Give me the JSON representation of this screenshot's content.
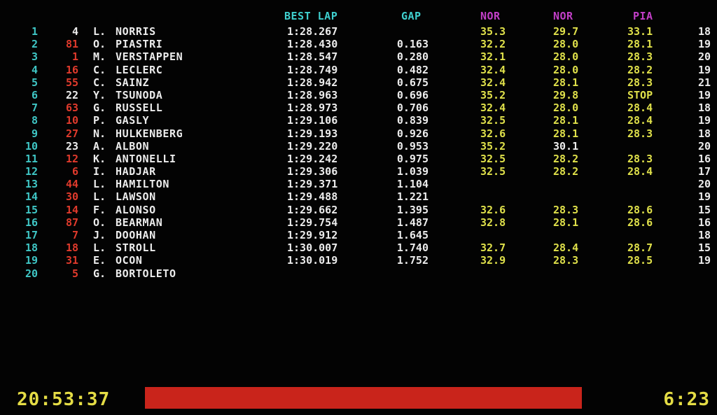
{
  "headers": {
    "best_lap": "BEST LAP",
    "gap": "GAP",
    "sector1": "NOR",
    "sector2": "NOR",
    "sector3": "PIA"
  },
  "colors": {
    "position": "#3fc6c5",
    "header": "#3fd0cf",
    "sector_header": "#c23fc8",
    "car_number_red": "#e03a2c",
    "sector_time": "#dfe04a",
    "text": "#ececec",
    "progress": "#c9241b",
    "clock": "#e4dc45"
  },
  "rows": [
    {
      "pos": "1",
      "num": "4",
      "num_red": false,
      "init": "L.",
      "name": "NORRIS",
      "best": "1:28.267",
      "gap": "",
      "s1": "35.3",
      "s2": "29.7",
      "s3": "33.1",
      "s2_white": false,
      "laps": "18"
    },
    {
      "pos": "2",
      "num": "81",
      "num_red": true,
      "init": "O.",
      "name": "PIASTRI",
      "best": "1:28.430",
      "gap": "0.163",
      "s1": "32.2",
      "s2": "28.0",
      "s3": "28.1",
      "s2_white": false,
      "laps": "19"
    },
    {
      "pos": "3",
      "num": "1",
      "num_red": true,
      "init": "M.",
      "name": "VERSTAPPEN",
      "best": "1:28.547",
      "gap": "0.280",
      "s1": "32.1",
      "s2": "28.0",
      "s3": "28.3",
      "s2_white": false,
      "laps": "20"
    },
    {
      "pos": "4",
      "num": "16",
      "num_red": true,
      "init": "C.",
      "name": "LECLERC",
      "best": "1:28.749",
      "gap": "0.482",
      "s1": "32.4",
      "s2": "28.0",
      "s3": "28.2",
      "s2_white": false,
      "laps": "19"
    },
    {
      "pos": "5",
      "num": "55",
      "num_red": true,
      "init": "C.",
      "name": "SAINZ",
      "best": "1:28.942",
      "gap": "0.675",
      "s1": "32.4",
      "s2": "28.1",
      "s3": "28.3",
      "s2_white": false,
      "laps": "21"
    },
    {
      "pos": "6",
      "num": "22",
      "num_red": false,
      "init": "Y.",
      "name": "TSUNODA",
      "best": "1:28.963",
      "gap": "0.696",
      "s1": "35.2",
      "s2": "29.8",
      "s3": "STOP",
      "s2_white": false,
      "laps": "19"
    },
    {
      "pos": "7",
      "num": "63",
      "num_red": true,
      "init": "G.",
      "name": "RUSSELL",
      "best": "1:28.973",
      "gap": "0.706",
      "s1": "32.4",
      "s2": "28.0",
      "s3": "28.4",
      "s2_white": false,
      "laps": "18"
    },
    {
      "pos": "8",
      "num": "10",
      "num_red": true,
      "init": "P.",
      "name": "GASLY",
      "best": "1:29.106",
      "gap": "0.839",
      "s1": "32.5",
      "s2": "28.1",
      "s3": "28.4",
      "s2_white": false,
      "laps": "19"
    },
    {
      "pos": "9",
      "num": "27",
      "num_red": true,
      "init": "N.",
      "name": "HULKENBERG",
      "best": "1:29.193",
      "gap": "0.926",
      "s1": "32.6",
      "s2": "28.1",
      "s3": "28.3",
      "s2_white": false,
      "laps": "18"
    },
    {
      "pos": "10",
      "num": "23",
      "num_red": false,
      "init": "A.",
      "name": "ALBON",
      "best": "1:29.220",
      "gap": "0.953",
      "s1": "35.2",
      "s2": "30.1",
      "s3": "",
      "s2_white": true,
      "laps": "20"
    },
    {
      "pos": "11",
      "num": "12",
      "num_red": true,
      "init": "K.",
      "name": "ANTONELLI",
      "best": "1:29.242",
      "gap": "0.975",
      "s1": "32.5",
      "s2": "28.2",
      "s3": "28.3",
      "s2_white": false,
      "laps": "16"
    },
    {
      "pos": "12",
      "num": "6",
      "num_red": true,
      "init": "I.",
      "name": "HADJAR",
      "best": "1:29.306",
      "gap": "1.039",
      "s1": "32.5",
      "s2": "28.2",
      "s3": "28.4",
      "s2_white": false,
      "laps": "17"
    },
    {
      "pos": "13",
      "num": "44",
      "num_red": true,
      "init": "L.",
      "name": "HAMILTON",
      "best": "1:29.371",
      "gap": "1.104",
      "s1": "",
      "s2": "",
      "s3": "",
      "s2_white": false,
      "laps": "20"
    },
    {
      "pos": "14",
      "num": "30",
      "num_red": true,
      "init": "L.",
      "name": "LAWSON",
      "best": "1:29.488",
      "gap": "1.221",
      "s1": "",
      "s2": "",
      "s3": "",
      "s2_white": false,
      "laps": "19"
    },
    {
      "pos": "15",
      "num": "14",
      "num_red": true,
      "init": "F.",
      "name": "ALONSO",
      "best": "1:29.662",
      "gap": "1.395",
      "s1": "32.6",
      "s2": "28.3",
      "s3": "28.6",
      "s2_white": false,
      "laps": "15"
    },
    {
      "pos": "16",
      "num": "87",
      "num_red": true,
      "init": "O.",
      "name": "BEARMAN",
      "best": "1:29.754",
      "gap": "1.487",
      "s1": "32.8",
      "s2": "28.1",
      "s3": "28.6",
      "s2_white": false,
      "laps": "16"
    },
    {
      "pos": "17",
      "num": "7",
      "num_red": true,
      "init": "J.",
      "name": "DOOHAN",
      "best": "1:29.912",
      "gap": "1.645",
      "s1": "",
      "s2": "",
      "s3": "",
      "s2_white": false,
      "laps": "18"
    },
    {
      "pos": "18",
      "num": "18",
      "num_red": true,
      "init": "L.",
      "name": "STROLL",
      "best": "1:30.007",
      "gap": "1.740",
      "s1": "32.7",
      "s2": "28.4",
      "s3": "28.7",
      "s2_white": false,
      "laps": "15"
    },
    {
      "pos": "19",
      "num": "31",
      "num_red": true,
      "init": "E.",
      "name": "OCON",
      "best": "1:30.019",
      "gap": "1.752",
      "s1": "32.9",
      "s2": "28.3",
      "s3": "28.5",
      "s2_white": false,
      "laps": "19"
    },
    {
      "pos": "20",
      "num": "5",
      "num_red": true,
      "init": "G.",
      "name": "BORTOLETO",
      "best": "",
      "gap": "",
      "s1": "",
      "s2": "",
      "s3": "",
      "s2_white": false,
      "laps": ""
    }
  ],
  "footer": {
    "clock": "20:53:37",
    "remaining": "6:23",
    "progress_fraction": 1.0
  }
}
